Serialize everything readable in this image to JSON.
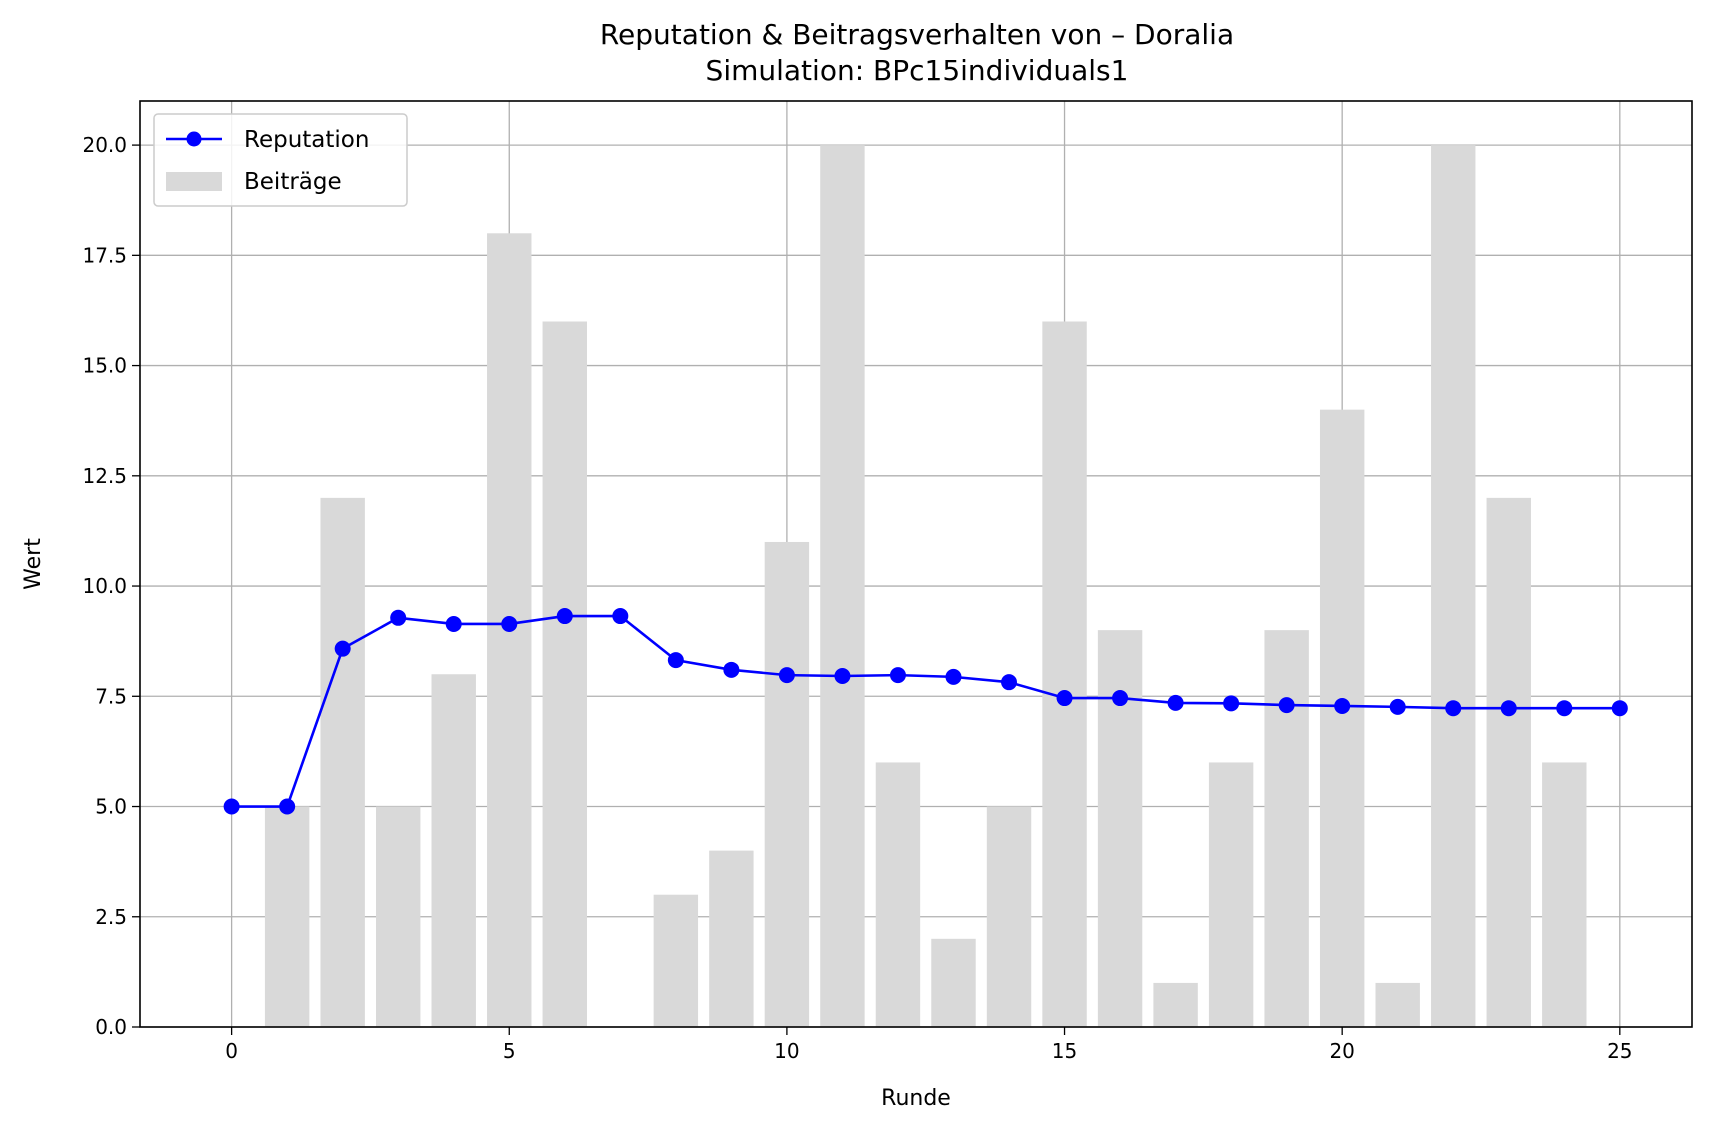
{
  "chart_data": {
    "type": "bar+line",
    "title": "Reputation & Beitragsverhalten von – Doralia",
    "subtitle": "Simulation: BPc15individuals1",
    "xlabel": "Runde",
    "ylabel": "Wert",
    "xlim": [
      -1.65,
      26.3
    ],
    "ylim": [
      0,
      21
    ],
    "x_ticks": [
      0,
      5,
      10,
      15,
      20,
      25
    ],
    "y_ticks": [
      "0.0",
      "2.5",
      "5.0",
      "7.5",
      "10.0",
      "12.5",
      "15.0",
      "17.5",
      "20.0"
    ],
    "grid": true,
    "legend_position": "top-left",
    "series": [
      {
        "name": "Reputation",
        "type": "line",
        "color": "#0000ff",
        "marker": "circle",
        "x": [
          0,
          1,
          2,
          3,
          4,
          5,
          6,
          7,
          8,
          9,
          10,
          11,
          12,
          13,
          14,
          15,
          16,
          17,
          18,
          19,
          20,
          21,
          22,
          23,
          24,
          25
        ],
        "values": [
          5.0,
          5.0,
          8.58,
          9.28,
          9.14,
          9.14,
          9.32,
          9.32,
          8.32,
          8.1,
          7.98,
          7.96,
          7.98,
          7.94,
          7.82,
          7.46,
          7.46,
          7.35,
          7.34,
          7.3,
          7.28,
          7.26,
          7.23,
          7.23,
          7.23,
          7.23
        ]
      },
      {
        "name": "Beiträge",
        "type": "bar",
        "color": "#d9d9d9",
        "x": [
          1,
          2,
          3,
          4,
          5,
          6,
          7,
          8,
          9,
          10,
          11,
          12,
          13,
          14,
          15,
          16,
          17,
          18,
          19,
          20,
          21,
          22,
          23,
          24
        ],
        "values": [
          5,
          12,
          5,
          8,
          18,
          16,
          0,
          3,
          4,
          11,
          20,
          6,
          2,
          5,
          16,
          9,
          1,
          6,
          9,
          14,
          1,
          20,
          12,
          6
        ]
      }
    ]
  }
}
